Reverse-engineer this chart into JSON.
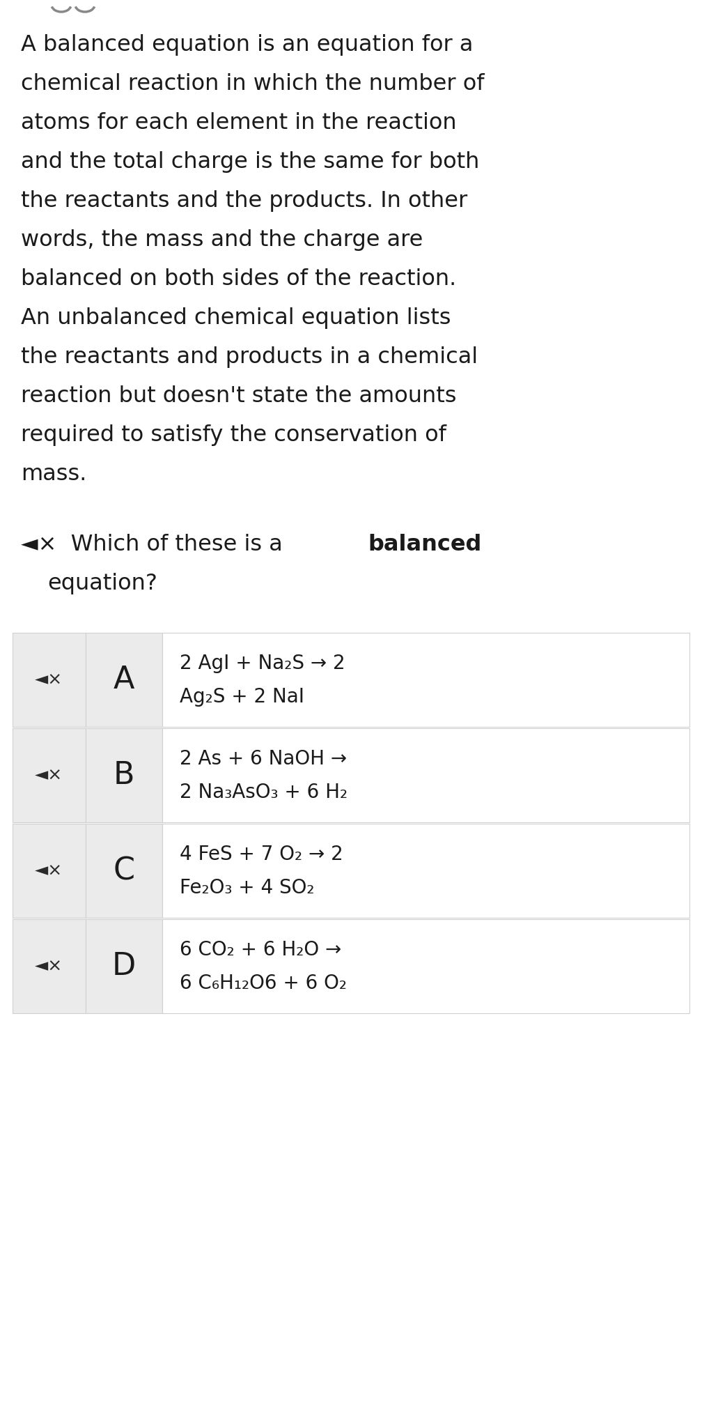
{
  "background_color": "#ffffff",
  "text_color": "#1a1a1a",
  "lines_para": [
    "A balanced equation is an equation for a",
    "chemical reaction in which the number of",
    "atoms for each element in the reaction",
    "and the total charge is the same for both",
    "the reactants and the products. In other",
    "words, the mass and the charge are",
    "balanced on both sides of the reaction.",
    "An unbalanced chemical equation lists",
    "the reactants and products in a chemical",
    "reaction but doesn't state the amounts",
    "required to satisfy the conservation of",
    "mass."
  ],
  "q_prefix": "◄×  Which of these is a ",
  "q_bold": "balanced",
  "q_second_line": "    equation?",
  "options": [
    {
      "letter": "A",
      "line1": "2 AgI + Na₂S → 2",
      "line2": "Ag₂S + 2 NaI"
    },
    {
      "letter": "B",
      "line1": "2 As + 6 NaOH →",
      "line2": "2 Na₃AsO₃ + 6 H₂"
    },
    {
      "letter": "C",
      "line1": "4 FeS + 7 O₂ → 2",
      "line2": "Fe₂O₃ + 4 SO₂"
    },
    {
      "letter": "D",
      "line1": "6 CO₂ + 6 H₂O →",
      "line2": "6 C₆H₁₂O6 + 6 O₂"
    }
  ],
  "para_fontsize": 23,
  "option_letter_fontsize": 32,
  "option_text_fontsize": 20,
  "speaker_fontsize": 18,
  "border_color": "#d0d0d0",
  "cell_gray_bg": "#ebebeb",
  "cell_white_bg": "#ffffff"
}
